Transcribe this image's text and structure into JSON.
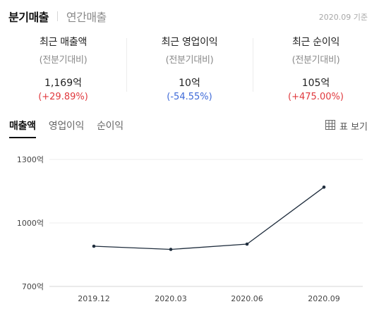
{
  "header": {
    "tabs": [
      {
        "label": "분기매출",
        "active": true
      },
      {
        "label": "연간매출",
        "active": false
      }
    ],
    "as_of": "2020.09 기준"
  },
  "summary": [
    {
      "title": "최근 매출액",
      "sub": "(전분기대비)",
      "value": "1,169억",
      "change": "(+29.89%)",
      "direction": "up"
    },
    {
      "title": "최근 영업이익",
      "sub": "(전분기대비)",
      "value": "10억",
      "change": "(-54.55%)",
      "direction": "down"
    },
    {
      "title": "최근 순이익",
      "sub": "(전분기대비)",
      "value": "105억",
      "change": "(+475.00%)",
      "direction": "up"
    }
  ],
  "chart_tabs": [
    {
      "label": "매출액",
      "active": true
    },
    {
      "label": "영업이익",
      "active": false
    },
    {
      "label": "순이익",
      "active": false
    }
  ],
  "table_view": {
    "label": "표 보기",
    "icon": "table-icon"
  },
  "colors": {
    "up": "#e0393e",
    "down": "#3e6ad8",
    "line": "#1f2d3d"
  },
  "chart_data": {
    "type": "line",
    "categories": [
      "2019.12",
      "2020.03",
      "2020.06",
      "2020.09"
    ],
    "series": [
      {
        "values": [
          890,
          875,
          900,
          1169
        ]
      }
    ],
    "y_ticks": [
      {
        "value": 1300,
        "label": "1300억"
      },
      {
        "value": 1000,
        "label": "1000억"
      },
      {
        "value": 700,
        "label": "700억"
      }
    ],
    "ylim": [
      700,
      1300
    ],
    "grid": true
  }
}
